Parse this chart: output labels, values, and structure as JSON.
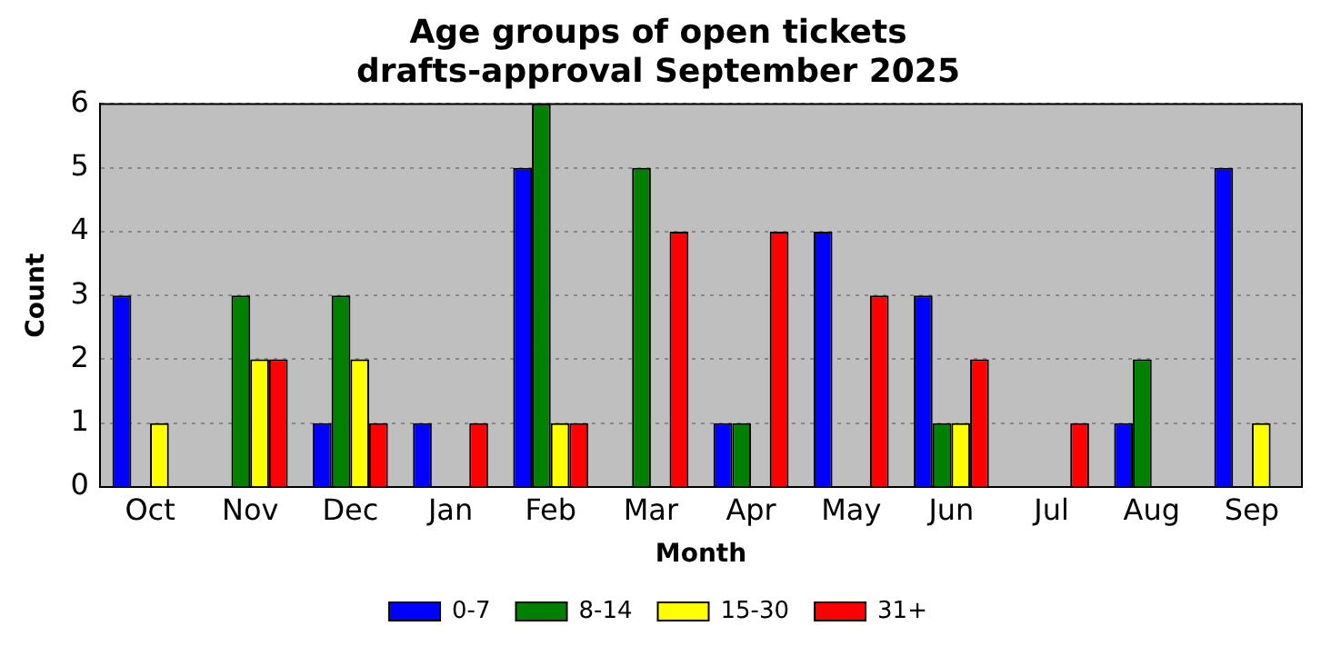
{
  "chart_data": {
    "type": "bar",
    "title": "Age groups of open tickets",
    "subtitle": "drafts-approval September 2025",
    "xlabel": "Month",
    "ylabel": "Count",
    "categories": [
      "Oct",
      "Nov",
      "Dec",
      "Jan",
      "Feb",
      "Mar",
      "Apr",
      "May",
      "Jun",
      "Jul",
      "Aug",
      "Sep"
    ],
    "series": [
      {
        "name": "0-7",
        "color": "#0000ff",
        "values": [
          3,
          0,
          1,
          1,
          5,
          0,
          1,
          4,
          3,
          0,
          1,
          5
        ]
      },
      {
        "name": "8-14",
        "color": "#008000",
        "values": [
          0,
          3,
          3,
          0,
          6,
          5,
          1,
          0,
          1,
          0,
          2,
          0
        ]
      },
      {
        "name": "15-30",
        "color": "#ffff00",
        "values": [
          1,
          2,
          2,
          0,
          1,
          0,
          0,
          0,
          1,
          0,
          0,
          1
        ]
      },
      {
        "name": "31+",
        "color": "#ff0000",
        "values": [
          0,
          2,
          1,
          1,
          1,
          4,
          4,
          3,
          2,
          1,
          0,
          0
        ]
      }
    ],
    "ylim": [
      0,
      6
    ],
    "yticks": [
      0,
      1,
      2,
      3,
      4,
      5,
      6
    ],
    "grid": "y",
    "legend": "bottom"
  }
}
